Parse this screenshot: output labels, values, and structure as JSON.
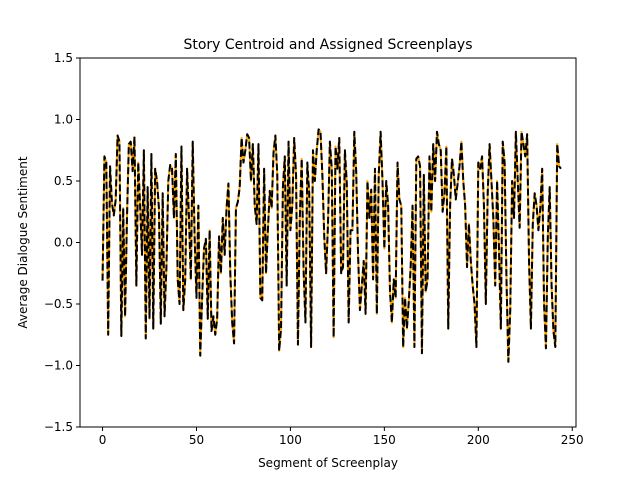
{
  "chart_data": {
    "type": "line",
    "title": "Story Centroid and Assigned Screenplays",
    "xlabel": "Segment of Screenplay",
    "ylabel": "Average Dialogue Sentiment",
    "xlim": [
      -12,
      252
    ],
    "ylim": [
      -1.5,
      1.5
    ],
    "xticks": [
      0,
      50,
      100,
      150,
      200,
      250
    ],
    "xtick_labels": [
      "0",
      "50",
      "100",
      "150",
      "200",
      "250"
    ],
    "yticks": [
      -1.5,
      -1.0,
      -0.5,
      0.0,
      0.5,
      1.0,
      1.5
    ],
    "ytick_labels": [
      "−1.5",
      "−1.0",
      "−0.5",
      "0.0",
      "0.5",
      "1.0",
      "1.5"
    ],
    "grid": false,
    "legend": "none",
    "series": [
      {
        "color": "#ffa500",
        "style": "solid",
        "x_start": 0,
        "x_step": 1,
        "values": [
          -0.31,
          0.7,
          0.65,
          -0.75,
          0.62,
          0.32,
          0.22,
          0.35,
          0.87,
          0.82,
          -0.76,
          0.28,
          -0.6,
          0.2,
          0.8,
          0.82,
          0.58,
          0.86,
          -0.35,
          0.65,
          0.3,
          -0.1,
          0.75,
          -0.78,
          0.45,
          -0.62,
          0.72,
          -0.7,
          0.6,
          0.5,
          0.28,
          -0.66,
          0.4,
          -0.6,
          -0.2,
          0.5,
          0.63,
          0.6,
          0.2,
          0.72,
          -0.3,
          -0.5,
          0.78,
          -0.55,
          -0.3,
          0.6,
          0.2,
          -0.3,
          0.82,
          0.05,
          -0.45,
          0.3,
          -0.92,
          -0.45,
          -0.05,
          0.03,
          -0.62,
          0.1,
          -0.72,
          -0.6,
          -0.75,
          -0.62,
          0.05,
          -0.25,
          0.2,
          -0.1,
          0.28,
          0.48,
          -0.25,
          -0.65,
          -0.82,
          0.28,
          0.33,
          0.45,
          0.85,
          0.65,
          0.75,
          0.88,
          0.85,
          0.5,
          0.8,
          0.3,
          0.15,
          0.8,
          -0.45,
          -0.47,
          0.6,
          -0.25,
          0.1,
          0.42,
          0.28,
          0.73,
          0.87,
          0.55,
          -0.88,
          -0.7,
          0.45,
          0.7,
          -0.35,
          0.82,
          0.1,
          0.3,
          0.85,
          0.55,
          -0.83,
          0.2,
          0.68,
          -0.22,
          -0.65,
          0.65,
          0.4,
          -0.85,
          0.75,
          0.5,
          0.75,
          0.92,
          0.9,
          0.55,
          0.05,
          -0.25,
          0.15,
          0.82,
          0.6,
          -0.77,
          0.78,
          0.6,
          0.85,
          -0.25,
          -0.2,
          0.75,
          0.48,
          -0.65,
          0.1,
          0.1,
          0.9,
          0.58,
          -0.1,
          -0.55,
          -0.35,
          -0.15,
          -0.58,
          0.5,
          0.2,
          0.43,
          -0.3,
          0.6,
          -0.58,
          0.55,
          0.9,
          0.5,
          -0.05,
          0.5,
          0.3,
          -0.4,
          -0.65,
          -0.3,
          -0.45,
          0.65,
          0.35,
          0.3,
          -0.85,
          -0.45,
          -0.7,
          -0.48,
          -0.2,
          0.3,
          -0.85,
          0.68,
          0.7,
          0.62,
          -0.9,
          0.55,
          -0.4,
          -0.3,
          0.7,
          0.25,
          0.8,
          0.5,
          0.9,
          0.8,
          0.75,
          0.25,
          0.4,
          0.78,
          -0.7,
          0.3,
          0.68,
          0.55,
          0.35,
          0.48,
          0.62,
          0.82,
          0.5,
          0.3,
          -0.2,
          0.15,
          -0.15,
          -0.35,
          -0.5,
          -0.85,
          0.65,
          0.6,
          0.7,
          0.3,
          -0.5,
          0.4,
          0.8,
          0.5,
          0.2,
          -0.35,
          0.5,
          -0.05,
          -0.7,
          0.82,
          0.65,
          -0.3,
          -0.97,
          -0.55,
          0.5,
          0.2,
          0.9,
          0.5,
          0.12,
          0.9,
          0.8,
          0.7,
          0.88,
          -0.15,
          -0.7,
          0.15,
          0.4,
          0.3,
          0.1,
          0.28,
          0.6,
          -0.5,
          -0.86,
          0.05,
          0.45,
          -0.35,
          -0.72,
          -0.85,
          0.8,
          0.62,
          0.6
        ]
      },
      {
        "color": "#000000",
        "style": "dashed",
        "x_start": 0,
        "x_step": 1,
        "values": [
          -0.31,
          0.7,
          0.65,
          -0.75,
          0.62,
          0.32,
          0.22,
          0.35,
          0.87,
          0.82,
          -0.76,
          0.28,
          -0.6,
          0.2,
          0.8,
          0.82,
          0.58,
          0.86,
          -0.35,
          0.65,
          0.3,
          -0.1,
          0.75,
          -0.78,
          0.45,
          -0.62,
          0.72,
          -0.7,
          0.6,
          0.5,
          0.28,
          -0.66,
          0.4,
          -0.6,
          -0.2,
          0.5,
          0.63,
          0.6,
          0.2,
          0.72,
          -0.3,
          -0.5,
          0.78,
          -0.55,
          -0.3,
          0.6,
          0.2,
          -0.3,
          0.82,
          0.05,
          -0.45,
          0.3,
          -0.92,
          -0.45,
          -0.05,
          0.03,
          -0.62,
          0.1,
          -0.72,
          -0.6,
          -0.75,
          -0.62,
          0.05,
          -0.25,
          0.2,
          -0.1,
          0.28,
          0.48,
          -0.25,
          -0.65,
          -0.82,
          0.28,
          0.33,
          0.45,
          0.85,
          0.65,
          0.75,
          0.88,
          0.85,
          0.5,
          0.8,
          0.3,
          0.15,
          0.8,
          -0.45,
          -0.47,
          0.6,
          -0.25,
          0.1,
          0.42,
          0.28,
          0.73,
          0.87,
          0.55,
          -0.88,
          -0.7,
          0.45,
          0.7,
          -0.35,
          0.82,
          0.1,
          0.3,
          0.85,
          0.55,
          -0.83,
          0.2,
          0.68,
          -0.22,
          -0.65,
          0.65,
          0.4,
          -0.85,
          0.75,
          0.5,
          0.75,
          0.92,
          0.9,
          0.55,
          0.05,
          -0.25,
          0.15,
          0.82,
          0.6,
          -0.77,
          0.78,
          0.6,
          0.85,
          -0.25,
          -0.2,
          0.75,
          0.48,
          -0.65,
          0.1,
          0.1,
          0.9,
          0.58,
          -0.1,
          -0.55,
          -0.35,
          -0.15,
          -0.58,
          0.5,
          0.2,
          0.43,
          -0.3,
          0.6,
          -0.58,
          0.55,
          0.9,
          0.5,
          -0.05,
          0.5,
          0.3,
          -0.4,
          -0.65,
          -0.3,
          -0.45,
          0.65,
          0.35,
          0.3,
          -0.85,
          -0.45,
          -0.7,
          -0.48,
          -0.2,
          0.3,
          -0.85,
          0.68,
          0.7,
          0.62,
          -0.9,
          0.55,
          -0.4,
          -0.3,
          0.7,
          0.25,
          0.8,
          0.5,
          0.9,
          0.8,
          0.75,
          0.25,
          0.4,
          0.78,
          -0.7,
          0.3,
          0.68,
          0.55,
          0.35,
          0.48,
          0.62,
          0.82,
          0.5,
          0.3,
          -0.2,
          0.15,
          -0.15,
          -0.35,
          -0.5,
          -0.85,
          0.65,
          0.6,
          0.7,
          0.3,
          -0.5,
          0.4,
          0.8,
          0.5,
          0.2,
          -0.35,
          0.5,
          -0.05,
          -0.7,
          0.82,
          0.65,
          -0.3,
          -0.97,
          -0.55,
          0.5,
          0.2,
          0.9,
          0.5,
          0.12,
          0.9,
          0.8,
          0.7,
          0.88,
          -0.15,
          -0.7,
          0.15,
          0.4,
          0.3,
          0.1,
          0.28,
          0.6,
          -0.5,
          -0.86,
          0.05,
          0.45,
          -0.35,
          -0.72,
          -0.85,
          0.8,
          0.62,
          0.6
        ]
      }
    ]
  }
}
